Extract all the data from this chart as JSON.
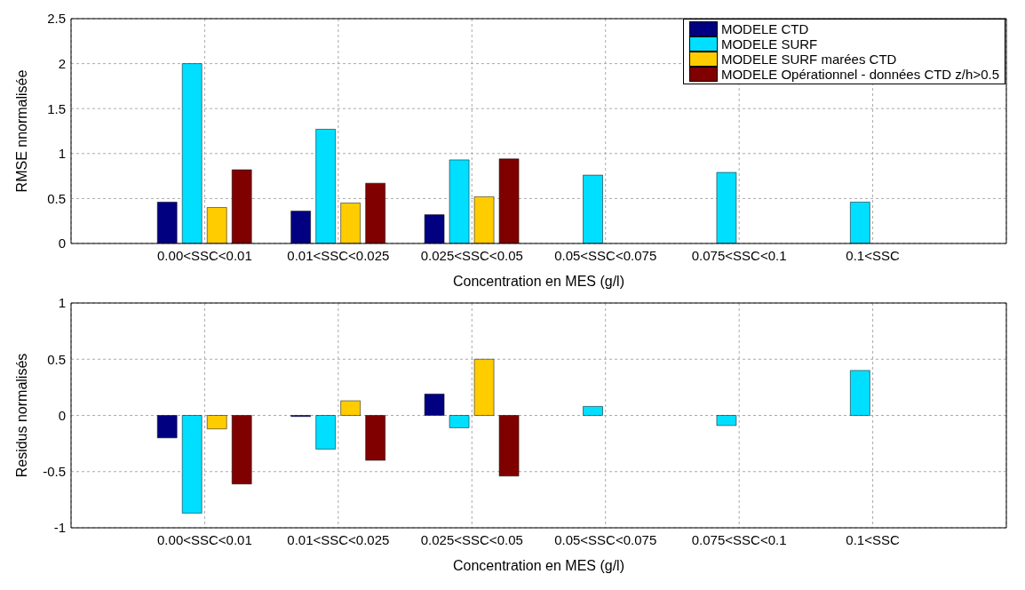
{
  "chart_data": [
    {
      "type": "bar",
      "xlabel": "Concentration en MES (g/l)",
      "ylabel": "RMSE nnormalisée",
      "categories": [
        "0.00<SSC<0.01",
        "0.01<SSC<0.025",
        "0.025<SSC<0.05",
        "0.05<SSC<0.075",
        "0.075<SSC<0.1",
        "0.1<SSC"
      ],
      "series": [
        {
          "name": "MODELE CTD",
          "color": "#000080",
          "values": [
            0.46,
            0.36,
            0.32,
            null,
            null,
            null
          ]
        },
        {
          "name": "MODELE SURF",
          "color": "#00dfff",
          "values": [
            2.0,
            1.27,
            0.93,
            0.76,
            0.79,
            0.46
          ]
        },
        {
          "name": "MODELE SURF marées CTD",
          "color": "#ffcc00",
          "values": [
            0.4,
            0.45,
            0.52,
            null,
            null,
            null
          ]
        },
        {
          "name": "MODELE Opérationnel - données CTD z/h>0.5",
          "color": "#800000",
          "values": [
            0.82,
            0.67,
            0.94,
            null,
            null,
            null
          ]
        }
      ],
      "ylim": [
        0,
        2.5
      ],
      "yticks": [
        0,
        0.5,
        1,
        1.5,
        2,
        2.5
      ],
      "grid": true,
      "legend": "top right"
    },
    {
      "type": "bar",
      "xlabel": "Concentration en MES (g/l)",
      "ylabel": "Residus normalisés",
      "categories": [
        "0.00<SSC<0.01",
        "0.01<SSC<0.025",
        "0.025<SSC<0.05",
        "0.05<SSC<0.075",
        "0.075<SSC<0.1",
        "0.1<SSC"
      ],
      "series": [
        {
          "color": "#000080",
          "values": [
            -0.2,
            -0.01,
            0.19,
            null,
            null,
            null
          ]
        },
        {
          "color": "#00dfff",
          "values": [
            -0.87,
            -0.3,
            -0.11,
            0.08,
            -0.09,
            0.4
          ]
        },
        {
          "color": "#ffcc00",
          "values": [
            -0.12,
            0.13,
            0.5,
            null,
            null,
            null
          ]
        },
        {
          "color": "#800000",
          "values": [
            -0.61,
            -0.4,
            -0.54,
            null,
            null,
            null
          ]
        }
      ],
      "ylim": [
        -1,
        1
      ],
      "yticks": [
        -1,
        -0.5,
        0,
        0.5,
        1
      ],
      "grid": true
    }
  ]
}
